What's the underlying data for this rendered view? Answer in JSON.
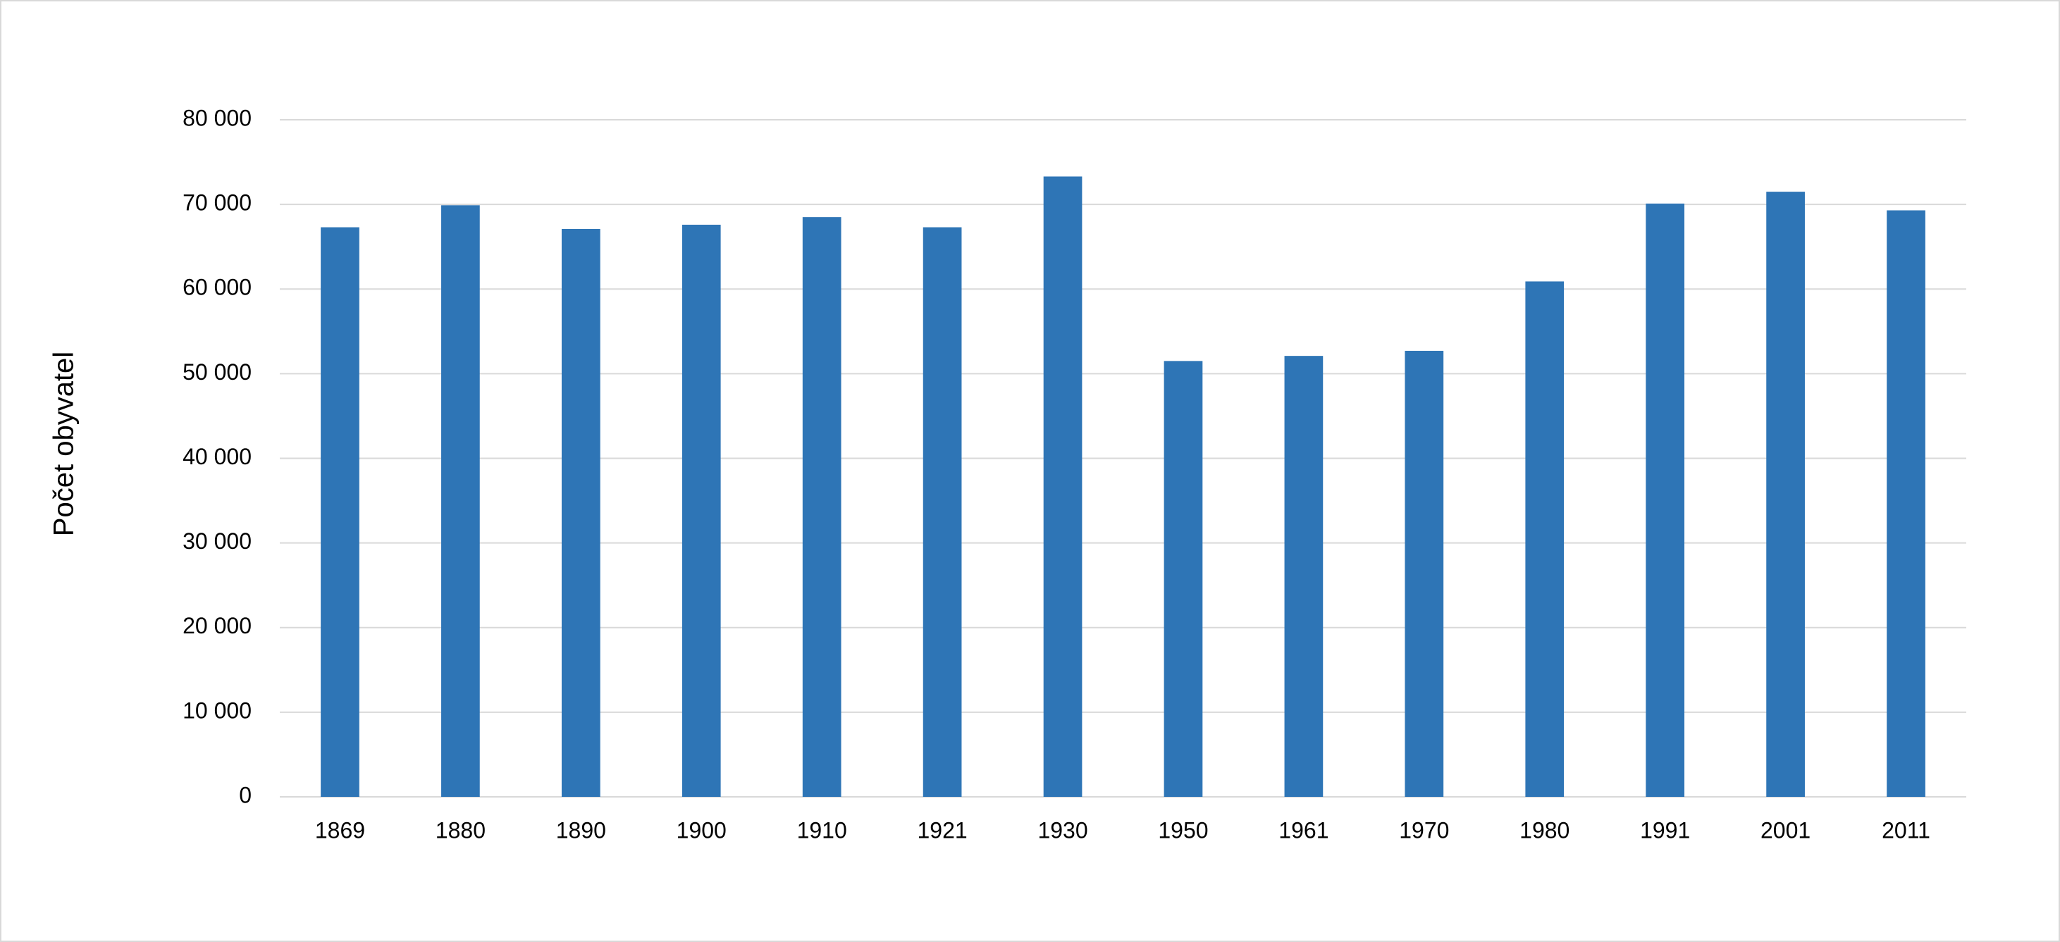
{
  "chart_data": {
    "type": "bar",
    "y_label": "Počet obyvatel",
    "categories": [
      "1869",
      "1880",
      "1890",
      "1900",
      "1910",
      "1921",
      "1930",
      "1950",
      "1961",
      "1970",
      "1980",
      "1991",
      "2001",
      "2011"
    ],
    "values": [
      67300,
      69900,
      67100,
      67600,
      68500,
      67300,
      73300,
      51500,
      52100,
      52700,
      60900,
      70100,
      71500,
      69300
    ],
    "color": "#2e75b6",
    "ylim": [
      0,
      80000
    ],
    "yticks": [
      0,
      {
        "value": 10000,
        "label": "10 000"
      },
      {
        "value": 20000,
        "label": "20 000"
      },
      {
        "value": 30000,
        "label": "30 000"
      },
      {
        "value": 40000,
        "label": "40 000"
      },
      {
        "value": 50000,
        "label": "50 000"
      },
      {
        "value": 60000,
        "label": "60 000"
      },
      {
        "value": 70000,
        "label": "70 000"
      },
      {
        "value": 80000,
        "label": "80 000"
      }
    ],
    "grid": true
  }
}
